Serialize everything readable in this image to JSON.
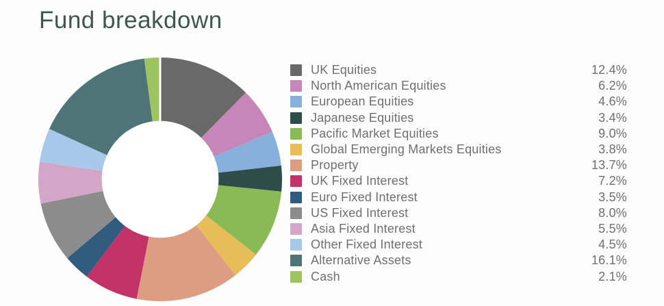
{
  "page": {
    "background_color": "#fdfdfd",
    "title_color": "#3d564e",
    "legend_text_color": "#6f6f6f"
  },
  "chart_data": {
    "type": "pie",
    "subtype": "donut",
    "title": "Fund breakdown",
    "inner_radius_ratio": 0.48,
    "start_angle_deg": 0,
    "direction": "clockwise",
    "legend_position": "right",
    "grid": false,
    "series": [
      {
        "label": "UK Equities",
        "value": 12.4,
        "color": "#696969"
      },
      {
        "label": "North American Equities",
        "value": 6.2,
        "color": "#c687b8"
      },
      {
        "label": "European Equities",
        "value": 4.6,
        "color": "#88b0dc"
      },
      {
        "label": "Japanese Equities",
        "value": 3.4,
        "color": "#2e4d4a"
      },
      {
        "label": "Pacific Market Equities",
        "value": 9.0,
        "color": "#8aba55"
      },
      {
        "label": "Global Emerging Markets Equities",
        "value": 3.8,
        "color": "#e8bc59"
      },
      {
        "label": "Property",
        "value": 13.7,
        "color": "#dd9d82"
      },
      {
        "label": "UK Fixed Interest",
        "value": 7.2,
        "color": "#c23266"
      },
      {
        "label": "Euro Fixed Interest",
        "value": 3.5,
        "color": "#305c80"
      },
      {
        "label": "US Fixed Interest",
        "value": 8.0,
        "color": "#8c8c8c"
      },
      {
        "label": "Asia Fixed Interest",
        "value": 5.5,
        "color": "#d3a5c6"
      },
      {
        "label": "Other Fixed Interest",
        "value": 4.5,
        "color": "#a6c8e9"
      },
      {
        "label": "Alternative Assets",
        "value": 16.1,
        "color": "#4d7477"
      },
      {
        "label": "Cash",
        "value": 2.1,
        "color": "#9dc45f"
      }
    ],
    "displayed_values": [
      "12.4%",
      "6.2%",
      "4.6%",
      "3.4%",
      "9.0%",
      "3.8%",
      "13.7%",
      "7.2%",
      "3.5%",
      "8.0%",
      "5.5%",
      "4.5%",
      "16.1%",
      "2.1%"
    ],
    "hole_color": "#ffffff",
    "top_separator_color": "#ffffff"
  }
}
